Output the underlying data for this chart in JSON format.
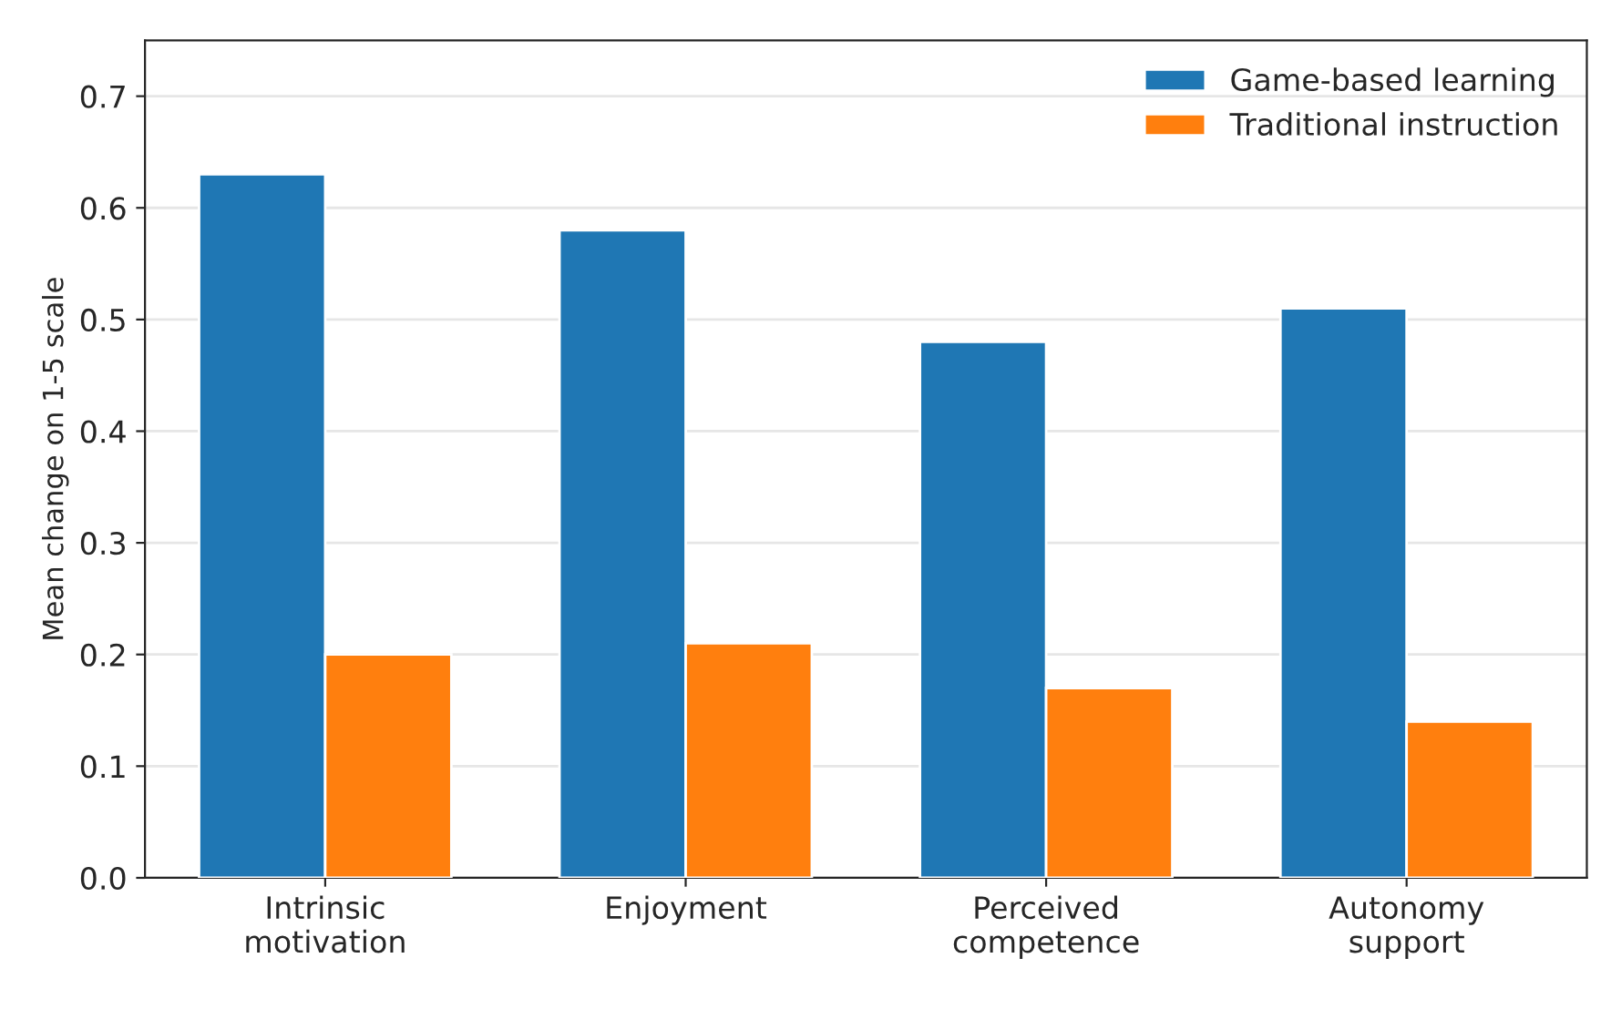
{
  "chart_data": {
    "type": "bar",
    "categories": [
      "Intrinsic\nmotivation",
      "Enjoyment",
      "Perceived\ncompetence",
      "Autonomy\nsupport"
    ],
    "series": [
      {
        "name": "Game-based learning",
        "color": "#1f77b4",
        "values": [
          0.63,
          0.58,
          0.48,
          0.51
        ]
      },
      {
        "name": "Traditional instruction",
        "color": "#ff7f0e",
        "values": [
          0.2,
          0.21,
          0.17,
          0.14
        ]
      }
    ],
    "ylabel": "Mean change on 1-5 scale",
    "ylim": [
      0,
      0.75
    ],
    "yticks": [
      {
        "value": 0,
        "label": "0.0"
      },
      0.1,
      0.2,
      0.3,
      0.4,
      0.5,
      0.6,
      0.7
    ],
    "grid": "y",
    "legend": "top right"
  }
}
